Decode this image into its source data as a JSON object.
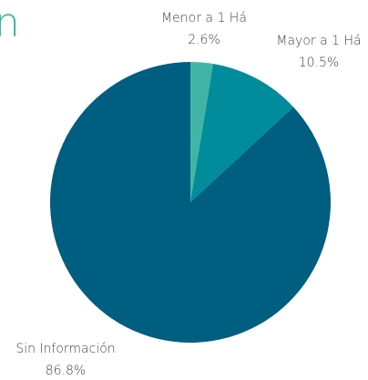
{
  "chart_data": {
    "type": "pie",
    "title": "n",
    "categories": [
      "Menor a 1 Há",
      "Mayor a 1 Há",
      "Sin Información"
    ],
    "values": [
      2.6,
      10.5,
      86.8
    ],
    "value_labels": [
      "2.6%",
      "10.5%",
      "86.8%"
    ],
    "colors": [
      "#40b5a5",
      "#008c9a",
      "#005e80"
    ]
  }
}
